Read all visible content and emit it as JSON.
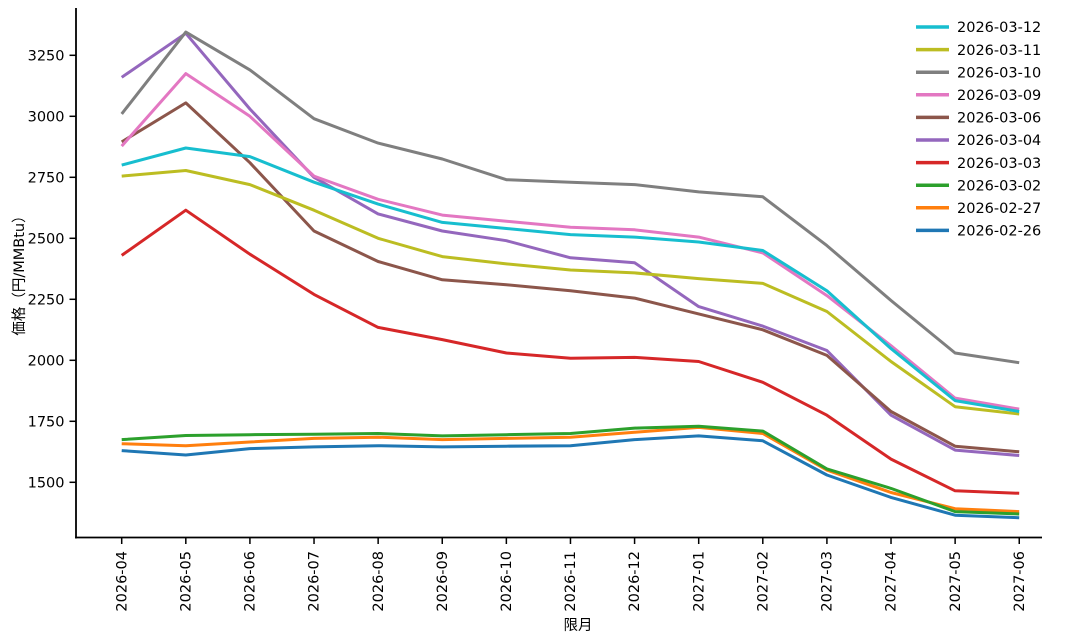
{
  "chart_data": {
    "type": "line",
    "title": "",
    "xlabel": "限月",
    "ylabel": "価格（円/MMBtu）",
    "grid": false,
    "legend_position": "upper right",
    "x_categories": [
      "2026-04",
      "2026-05",
      "2026-06",
      "2026-07",
      "2026-08",
      "2026-09",
      "2026-10",
      "2026-11",
      "2026-12",
      "2027-01",
      "2027-02",
      "2027-03",
      "2027-04",
      "2027-05",
      "2027-06"
    ],
    "y_ticks": [
      3250,
      3000,
      2750,
      2500,
      2250,
      2000,
      1750,
      1500
    ],
    "ylim": [
      1276,
      3443
    ],
    "series": [
      {
        "name": "2026-02-26",
        "color": "#1f77b4",
        "values": [
          1630,
          1612,
          1638,
          1645,
          1650,
          1645,
          1648,
          1650,
          1675,
          1690,
          1670,
          1530,
          1438,
          1365,
          1355
        ]
      },
      {
        "name": "2026-02-27",
        "color": "#ff7f0e",
        "values": [
          1658,
          1650,
          1665,
          1680,
          1685,
          1675,
          1680,
          1685,
          1705,
          1725,
          1700,
          1550,
          1458,
          1392,
          1380
        ]
      },
      {
        "name": "2026-03-02",
        "color": "#2ca02c",
        "values": [
          1675,
          1692,
          1695,
          1697,
          1700,
          1690,
          1695,
          1700,
          1722,
          1730,
          1710,
          1555,
          1475,
          1380,
          1370
        ]
      },
      {
        "name": "2026-03-03",
        "color": "#d62728",
        "values": [
          2430,
          2615,
          2435,
          2270,
          2135,
          2085,
          2030,
          2008,
          2012,
          1995,
          1910,
          1775,
          1595,
          1465,
          1455
        ]
      },
      {
        "name": "2026-03-04",
        "color": "#9467bd",
        "values": [
          3160,
          3340,
          3030,
          2750,
          2600,
          2530,
          2490,
          2420,
          2400,
          2220,
          2140,
          2040,
          1775,
          1632,
          1610
        ]
      },
      {
        "name": "2026-03-06",
        "color": "#8c564b",
        "values": [
          2895,
          3055,
          2810,
          2530,
          2405,
          2330,
          2310,
          2285,
          2255,
          2190,
          2125,
          2020,
          1790,
          1648,
          1625
        ]
      },
      {
        "name": "2026-03-09",
        "color": "#e377c2",
        "values": [
          2878,
          3175,
          3000,
          2755,
          2660,
          2595,
          2570,
          2545,
          2535,
          2505,
          2440,
          2265,
          2060,
          1845,
          1800
        ]
      },
      {
        "name": "2026-03-10",
        "color": "#7f7f7f",
        "values": [
          3010,
          3345,
          3190,
          2990,
          2890,
          2825,
          2740,
          2730,
          2720,
          2690,
          2670,
          2470,
          2245,
          2030,
          1990
        ]
      },
      {
        "name": "2026-03-11",
        "color": "#bcbd22",
        "values": [
          2755,
          2778,
          2720,
          2615,
          2500,
          2425,
          2395,
          2370,
          2358,
          2335,
          2315,
          2200,
          1995,
          1810,
          1780
        ]
      },
      {
        "name": "2026-03-12",
        "color": "#17becf",
        "values": [
          2800,
          2870,
          2835,
          2730,
          2640,
          2565,
          2540,
          2515,
          2505,
          2485,
          2450,
          2285,
          2048,
          1835,
          1790
        ]
      }
    ],
    "legend_order": [
      "2026-03-12",
      "2026-03-11",
      "2026-03-10",
      "2026-03-09",
      "2026-03-06",
      "2026-03-04",
      "2026-03-03",
      "2026-03-02",
      "2026-02-27",
      "2026-02-26"
    ]
  }
}
